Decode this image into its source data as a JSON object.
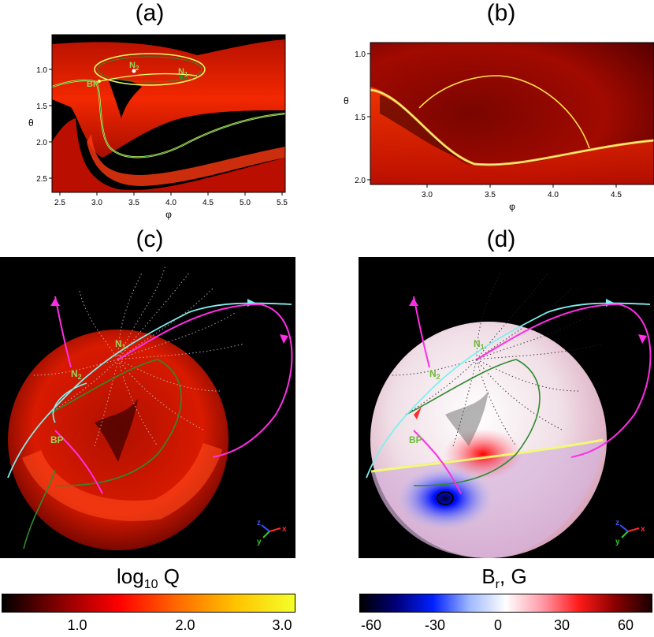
{
  "panels": {
    "a": {
      "title": "(a)",
      "xlabel": "φ",
      "ylabel": "θ",
      "xticks": [
        "2.5",
        "3.0",
        "3.5",
        "4.0",
        "4.5",
        "5.0",
        "5.5"
      ],
      "yticks": [
        "1.0",
        "1.5",
        "2.0",
        "2.5"
      ],
      "labels": {
        "bp": "BP",
        "n1": "N",
        "n1_sub": "1",
        "n2": "N",
        "n2_sub": "2"
      }
    },
    "b": {
      "title": "(b)",
      "xlabel": "φ",
      "ylabel": "θ",
      "xticks": [
        "3.0",
        "3.5",
        "4.0",
        "4.5"
      ],
      "yticks": [
        "1.0",
        "1.5",
        "2.0"
      ]
    },
    "c": {
      "title": "(c)",
      "labels": {
        "bp": "BP",
        "n1": "N",
        "n1_sub": "1",
        "n2": "N",
        "n2_sub": "2"
      },
      "axes": {
        "z": "z",
        "y": "y",
        "x": "x"
      }
    },
    "d": {
      "title": "(d)",
      "labels": {
        "bp": "BP",
        "n1": "N",
        "n1_sub": "1",
        "n2": "N",
        "n2_sub": "2"
      },
      "axes": {
        "z": "z",
        "y": "y",
        "x": "x"
      }
    }
  },
  "colorbars": {
    "left": {
      "title_main": "log",
      "title_sub": "10",
      "title_end": " Q",
      "ticks": [
        "1.0",
        "2.0",
        "3.0"
      ],
      "colors": [
        "#000000",
        "#8a0000",
        "#ff0000",
        "#ff6a00",
        "#ffc400",
        "#f4ff2a"
      ]
    },
    "right": {
      "title_main": "B",
      "title_sub": "r",
      "title_end": ", G",
      "ticks": [
        "-60",
        "-30",
        "0",
        "30",
        "60"
      ],
      "colors": [
        "#000000",
        "#00007a",
        "#0020ff",
        "#9fb8ff",
        "#ffffff",
        "#ff9aa8",
        "#ff1a1a",
        "#8a0000",
        "#1a0000"
      ]
    }
  },
  "colors": {
    "separatrix": "#2f8a2f",
    "separatrix_glow": "#e8ff66",
    "label_green": "#9bd35a",
    "fieldline_cyan": "#7ff0f0",
    "fieldline_magenta": "#ff2ee6"
  }
}
